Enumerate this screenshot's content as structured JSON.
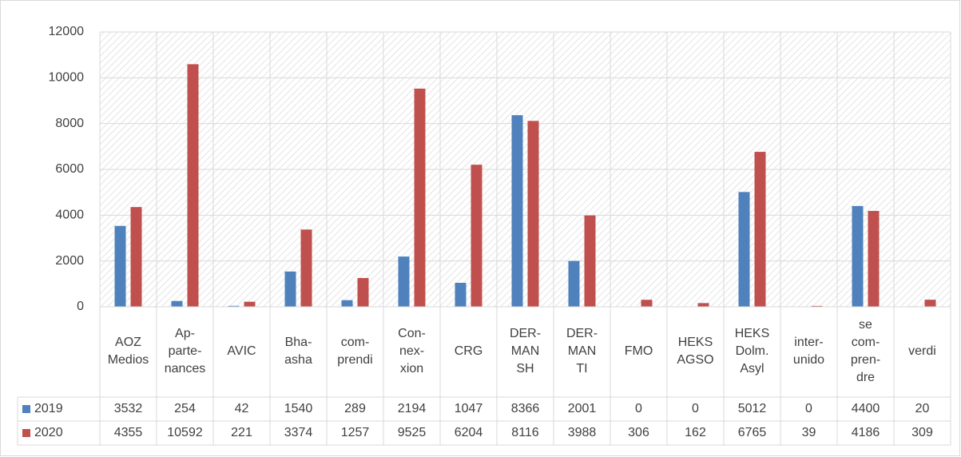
{
  "chart_data": {
    "type": "bar",
    "categories": [
      [
        "AOZ",
        "Medios"
      ],
      [
        "Ap-",
        "parte-",
        "nances"
      ],
      [
        "AVIC"
      ],
      [
        "Bha-",
        "asha"
      ],
      [
        "com-",
        "prendi"
      ],
      [
        "Con-",
        "nex-",
        "xion"
      ],
      [
        "CRG"
      ],
      [
        "DER-",
        "MAN",
        "SH"
      ],
      [
        "DER-",
        "MAN",
        "TI"
      ],
      [
        "FMO"
      ],
      [
        "HEKS",
        "AGSO"
      ],
      [
        "HEKS",
        "Dolm.",
        "Asyl"
      ],
      [
        "inter-",
        "unido"
      ],
      [
        "se",
        "com-",
        "pren-",
        "dre"
      ],
      [
        "verdi"
      ]
    ],
    "series": [
      {
        "name": "2019",
        "color": "#4f81bd",
        "values": [
          3532,
          254,
          42,
          1540,
          289,
          2194,
          1047,
          8366,
          2001,
          0,
          0,
          5012,
          0,
          4400,
          20
        ]
      },
      {
        "name": "2020",
        "color": "#c0504d",
        "values": [
          4355,
          10592,
          221,
          3374,
          1257,
          9525,
          6204,
          8116,
          3988,
          306,
          162,
          6765,
          39,
          4186,
          309
        ]
      }
    ],
    "ylim": [
      0,
      12000
    ],
    "yticks": [
      0,
      2000,
      4000,
      6000,
      8000,
      10000,
      12000
    ],
    "grid": true
  }
}
